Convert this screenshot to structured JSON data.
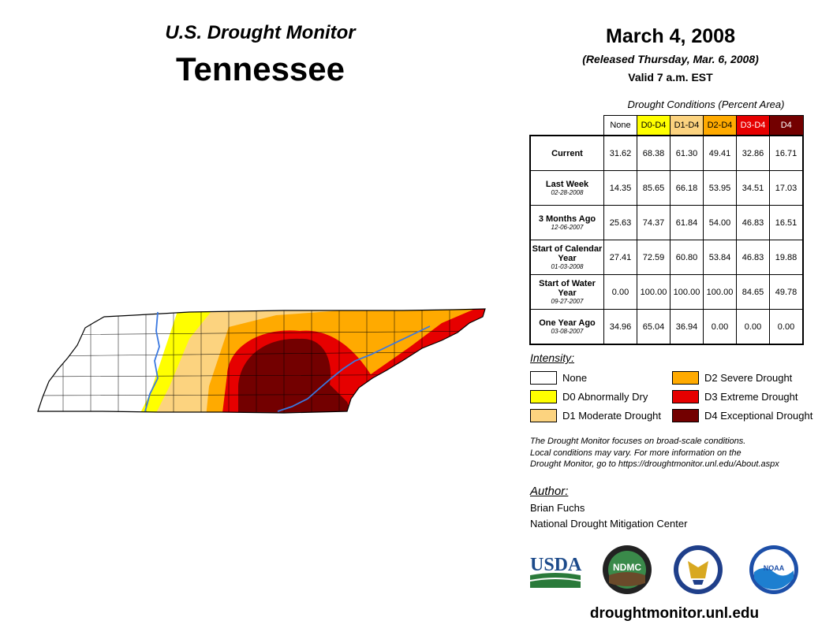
{
  "header": {
    "title": "U.S. Drought Monitor",
    "state": "Tennessee",
    "date": "March 4, 2008",
    "released": "(Released Thursday, Mar. 6, 2008)",
    "valid": "Valid 7 a.m. EST"
  },
  "conditions": {
    "caption": "Drought Conditions (Percent Area)",
    "columns": [
      {
        "label": "None",
        "color": "#ffffff",
        "text_color": "#000000"
      },
      {
        "label": "D0-D4",
        "color": "#ffff00",
        "text_color": "#000000"
      },
      {
        "label": "D1-D4",
        "color": "#fcd37f",
        "text_color": "#000000"
      },
      {
        "label": "D2-D4",
        "color": "#ffaa00",
        "text_color": "#000000"
      },
      {
        "label": "D3-D4",
        "color": "#e60000",
        "text_color": "#ffffff"
      },
      {
        "label": "D4",
        "color": "#730000",
        "text_color": "#ffffff"
      }
    ],
    "rows": [
      {
        "label": "Current",
        "date": "",
        "values": [
          "31.62",
          "68.38",
          "61.30",
          "49.41",
          "32.86",
          "16.71"
        ]
      },
      {
        "label": "Last Week",
        "date": "02-28-2008",
        "values": [
          "14.35",
          "85.65",
          "66.18",
          "53.95",
          "34.51",
          "17.03"
        ]
      },
      {
        "label": "3 Months Ago",
        "date": "12-06-2007",
        "values": [
          "25.63",
          "74.37",
          "61.84",
          "54.00",
          "46.83",
          "16.51"
        ]
      },
      {
        "label": "Start of Calendar Year",
        "date": "01-03-2008",
        "values": [
          "27.41",
          "72.59",
          "60.80",
          "53.84",
          "46.83",
          "19.88"
        ]
      },
      {
        "label": "Start of Water Year",
        "date": "09-27-2007",
        "values": [
          "0.00",
          "100.00",
          "100.00",
          "100.00",
          "84.65",
          "49.78"
        ]
      },
      {
        "label": "One Year Ago",
        "date": "03-08-2007",
        "values": [
          "34.96",
          "65.04",
          "36.94",
          "0.00",
          "0.00",
          "0.00"
        ]
      }
    ]
  },
  "legend": {
    "title": "Intensity:",
    "items": [
      {
        "label": "None",
        "color": "#ffffff"
      },
      {
        "label": "D0 Abnormally Dry",
        "color": "#ffff00"
      },
      {
        "label": "D1 Moderate Drought",
        "color": "#fcd37f"
      },
      {
        "label": "D2 Severe Drought",
        "color": "#ffaa00"
      },
      {
        "label": "D3 Extreme Drought",
        "color": "#e60000"
      },
      {
        "label": "D4 Exceptional Drought",
        "color": "#730000"
      }
    ]
  },
  "note": {
    "line1": "The Drought Monitor focuses on broad-scale conditions.",
    "line2": "Local conditions may vary. For more information on the",
    "line3": "Drought Monitor, go to https://droughtmonitor.unl.edu/About.aspx"
  },
  "author": {
    "title": "Author:",
    "name": "Brian Fuchs",
    "org": "National Drought Mitigation Center"
  },
  "logos": {
    "usda": "USDA",
    "ndmc": "NDMC",
    "noaa": "NOAA"
  },
  "website": "droughtmonitor.unl.edu",
  "colors": {
    "river": "#3a78e0",
    "county_line": "#000000"
  }
}
